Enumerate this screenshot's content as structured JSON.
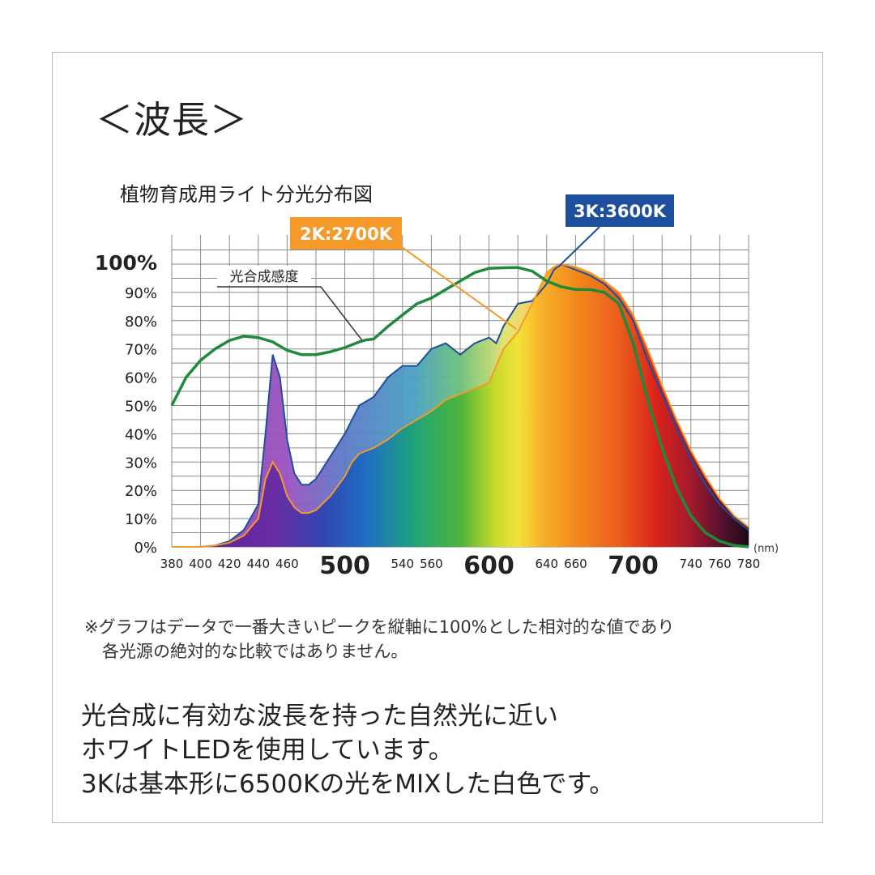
{
  "heading": "＜波長＞",
  "chart_title": "植物育成用ライト分光分布図",
  "notes": [
    "※グラフはデータで一番大きいピークを縦軸に100%とした相対的な値であり",
    "各光源の絶対的な比較ではありません。"
  ],
  "body": [
    "光合成に有効な波長を持った自然光に近い",
    "ホワイトLEDを使用しています。",
    "3Kは基本形に6500Kの光をMIXした白色です。"
  ],
  "colors": {
    "photosynthesis": "#1f8a3c",
    "k2700": "#f39a2b",
    "k3600": "#1d4f9c",
    "grid": "#8a8a8a"
  },
  "chart_data": {
    "type": "area",
    "xunit": "(nm)",
    "xlim": [
      380,
      780
    ],
    "ylim": [
      0,
      100
    ],
    "x_ticks": [
      {
        "v": 380,
        "label": "380",
        "big": false
      },
      {
        "v": 400,
        "label": "400",
        "big": false
      },
      {
        "v": 420,
        "label": "420",
        "big": false
      },
      {
        "v": 440,
        "label": "440",
        "big": false
      },
      {
        "v": 460,
        "label": "460",
        "big": false
      },
      {
        "v": 500,
        "label": "500",
        "big": true
      },
      {
        "v": 540,
        "label": "540",
        "big": false
      },
      {
        "v": 560,
        "label": "560",
        "big": false
      },
      {
        "v": 600,
        "label": "600",
        "big": true
      },
      {
        "v": 640,
        "label": "640",
        "big": false
      },
      {
        "v": 660,
        "label": "660",
        "big": false
      },
      {
        "v": 700,
        "label": "700",
        "big": true
      },
      {
        "v": 740,
        "label": "740",
        "big": false
      },
      {
        "v": 760,
        "label": "760",
        "big": false
      },
      {
        "v": 780,
        "label": "780",
        "big": false
      }
    ],
    "y_ticks": [
      {
        "v": 0,
        "label": "0%"
      },
      {
        "v": 10,
        "label": "10%"
      },
      {
        "v": 20,
        "label": "20%"
      },
      {
        "v": 30,
        "label": "30%"
      },
      {
        "v": 40,
        "label": "40%"
      },
      {
        "v": 50,
        "label": "50%"
      },
      {
        "v": 60,
        "label": "60%"
      },
      {
        "v": 70,
        "label": "70%"
      },
      {
        "v": 80,
        "label": "80%"
      },
      {
        "v": 90,
        "label": "90%"
      },
      {
        "v": 100,
        "label": "100%",
        "big": true
      }
    ],
    "series": [
      {
        "name": "3K:3600K",
        "x": [
          380,
          400,
          410,
          420,
          430,
          440,
          445,
          450,
          455,
          460,
          465,
          470,
          475,
          480,
          490,
          500,
          505,
          510,
          520,
          530,
          540,
          550,
          560,
          570,
          580,
          590,
          600,
          605,
          610,
          620,
          630,
          640,
          645,
          650,
          660,
          670,
          680,
          690,
          700,
          710,
          720,
          730,
          740,
          750,
          760,
          770,
          780
        ],
        "y": [
          0,
          0,
          0.5,
          2,
          6,
          15,
          40,
          68,
          60,
          38,
          26,
          22,
          22,
          24,
          32,
          40,
          45,
          50,
          53,
          60,
          64,
          64,
          70,
          72,
          68,
          72,
          74,
          72,
          78,
          86,
          87,
          93,
          98,
          100,
          98,
          96,
          93,
          88,
          80,
          66,
          54,
          42,
          31,
          22,
          15,
          10,
          6
        ]
      },
      {
        "name": "2K:2700K",
        "x": [
          380,
          400,
          410,
          420,
          430,
          440,
          445,
          450,
          455,
          460,
          465,
          470,
          475,
          480,
          490,
          500,
          505,
          510,
          520,
          530,
          540,
          550,
          560,
          570,
          580,
          590,
          600,
          610,
          620,
          630,
          640,
          645,
          650,
          660,
          670,
          680,
          690,
          700,
          710,
          720,
          730,
          740,
          750,
          760,
          770,
          780
        ],
        "y": [
          0,
          0,
          0.5,
          1.5,
          4,
          10,
          24,
          30,
          26,
          18,
          14,
          12,
          12,
          13,
          18,
          25,
          30,
          33,
          35,
          38,
          42,
          45,
          48,
          52,
          54,
          56,
          58,
          70,
          76,
          86,
          97,
          99,
          100,
          99,
          97,
          94,
          90,
          82,
          70,
          57,
          45,
          34,
          25,
          17,
          11,
          7
        ]
      },
      {
        "name": "光合成感度",
        "x": [
          380,
          390,
          400,
          410,
          420,
          430,
          440,
          450,
          460,
          470,
          480,
          490,
          500,
          510,
          515,
          520,
          530,
          540,
          550,
          560,
          570,
          580,
          590,
          600,
          610,
          620,
          630,
          640,
          650,
          660,
          670,
          680,
          690,
          700,
          710,
          720,
          730,
          740,
          750,
          760,
          770,
          780
        ],
        "y": [
          50,
          60,
          66,
          70,
          73,
          74.5,
          74,
          72.5,
          69.5,
          68,
          68,
          69,
          70.5,
          72.5,
          73.2,
          73.5,
          78,
          82,
          86,
          88,
          91,
          94,
          97,
          98.5,
          98.7,
          98.8,
          97.5,
          94,
          92,
          91,
          91,
          90,
          86,
          72,
          52,
          35,
          21,
          11,
          5,
          2,
          0.5,
          0
        ]
      }
    ],
    "annotations": [
      {
        "label": "3K:3600K",
        "pointer": [
          648,
          99
        ]
      },
      {
        "label": "2K:2700K",
        "pointer": [
          619,
          77
        ]
      },
      {
        "label": "光合成感度",
        "pointer": [
          512,
          73
        ]
      }
    ]
  }
}
